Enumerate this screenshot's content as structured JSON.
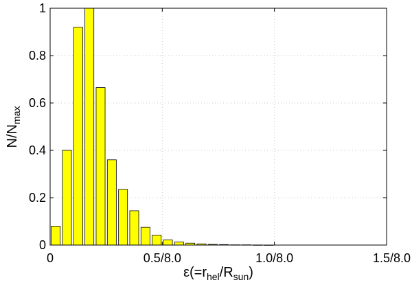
{
  "chart_data": {
    "type": "bar",
    "x": [
      0.025,
      0.075,
      0.125,
      0.175,
      0.225,
      0.275,
      0.325,
      0.375,
      0.425,
      0.475,
      0.525,
      0.575,
      0.625,
      0.675,
      0.725,
      0.775,
      0.825,
      0.875,
      0.925,
      0.975
    ],
    "values": [
      0.08,
      0.4,
      0.92,
      1.0,
      0.665,
      0.36,
      0.235,
      0.145,
      0.075,
      0.042,
      0.022,
      0.013,
      0.008,
      0.005,
      0.003,
      0.002,
      0.001,
      0.001,
      0.0005,
      0.0003
    ],
    "bar_width": 0.04,
    "xlim": [
      0,
      1.5
    ],
    "ylim": [
      0,
      1
    ],
    "xticks": [
      {
        "value": 0,
        "label": "0"
      },
      {
        "value": 0.5,
        "label": "0.5/8.0"
      },
      {
        "value": 1.0,
        "label": "1.0/8.0"
      },
      {
        "value": 1.5,
        "label": "1.5/8.0"
      }
    ],
    "yticks": [
      {
        "value": 0,
        "label": "0"
      },
      {
        "value": 0.2,
        "label": "0.2"
      },
      {
        "value": 0.4,
        "label": "0.4"
      },
      {
        "value": 0.6,
        "label": "0.6"
      },
      {
        "value": 0.8,
        "label": "0.8"
      },
      {
        "value": 1.0,
        "label": "1"
      }
    ],
    "xlabel": {
      "prefix": "ε(=r",
      "sub1": "hel",
      "mid": "/R",
      "sub2": "sun",
      "suffix": ")"
    },
    "ylabel": {
      "main": "N/N",
      "sub": "max"
    },
    "grid": true,
    "bar_color": "#ffff00",
    "bar_edge_color": "#000000"
  }
}
